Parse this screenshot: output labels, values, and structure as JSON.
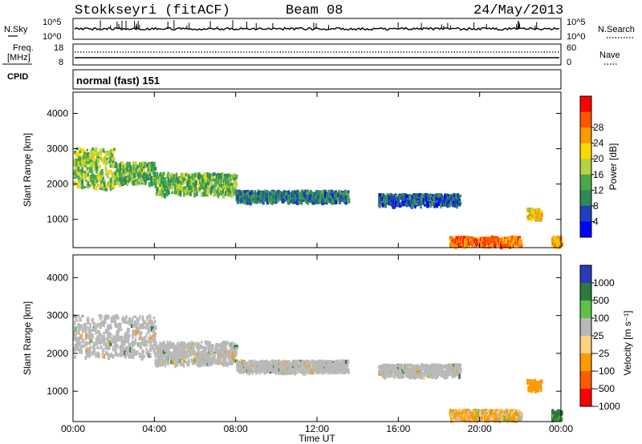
{
  "header": {
    "station": "Stokkseyri (fitACF)",
    "beam": "Beam 08",
    "date": "24/May/2013"
  },
  "noise_panel": {
    "left_label": "N.Sky",
    "right_label": "N.Search",
    "left_ticks": [
      "10^5",
      "10^0"
    ],
    "right_ticks": [
      "10^5",
      "10^0"
    ]
  },
  "freq_panel": {
    "left_label_top": "Freq.",
    "left_label_unit": "[MHz]",
    "left_ticks": [
      "18",
      "8"
    ],
    "right_label": "Nave",
    "right_ticks": [
      "60",
      "0"
    ]
  },
  "cpid_panel": {
    "label": "CPID",
    "value": "normal (fast) 151"
  },
  "colors": {
    "power_scale": [
      "#0000ff",
      "#1f3fbf",
      "#2e8b57",
      "#4aa84a",
      "#b6d23c",
      "#ffd700",
      "#ff9900",
      "#ff5500",
      "#ff0000"
    ],
    "velocity_scale": [
      "#2a3ab8",
      "#2d7a3c",
      "#5ec24a",
      "#b9b9b9",
      "#ffd27f",
      "#ff9a00",
      "#ff5a00",
      "#ff0000"
    ],
    "ground_scatter": "#b9b9b9"
  },
  "chart_data": [
    {
      "type": "heatmap",
      "parameter": "Power",
      "ylabel": "Slant Range [km]",
      "y_ticks": [
        "1000",
        "2000",
        "3000",
        "4000"
      ],
      "ylim": [
        200,
        4600
      ],
      "x_ticks": [
        "00:00",
        "04:00",
        "08:00",
        "12:00",
        "16:00",
        "20:00",
        "00:00"
      ],
      "xlim": [
        0,
        24
      ],
      "colorbar": {
        "label": "Power [dB]",
        "ticks": [
          "4",
          "8",
          "12",
          "16",
          "20",
          "24",
          "28"
        ],
        "range": [
          0,
          30
        ]
      },
      "echo_regions": [
        {
          "t": [
            0.0,
            2.0
          ],
          "range_km": [
            1900,
            3000
          ],
          "power_db": 14
        },
        {
          "t": [
            2.0,
            4.0
          ],
          "range_km": [
            2000,
            2600
          ],
          "power_db": 12
        },
        {
          "t": [
            4.0,
            8.0
          ],
          "range_km": [
            1700,
            2300
          ],
          "power_db": 12
        },
        {
          "t": [
            8.0,
            13.5
          ],
          "range_km": [
            1500,
            1800
          ],
          "power_db": 8
        },
        {
          "t": [
            15.0,
            19.0
          ],
          "range_km": [
            1400,
            1700
          ],
          "power_db": 6
        },
        {
          "t": [
            18.5,
            22.0
          ],
          "range_km": [
            250,
            500
          ],
          "power_db": 24
        },
        {
          "t": [
            22.3,
            23.0
          ],
          "range_km": [
            1000,
            1300
          ],
          "power_db": 18
        },
        {
          "t": [
            23.5,
            24.0
          ],
          "range_km": [
            250,
            500
          ],
          "power_db": 20
        }
      ]
    },
    {
      "type": "heatmap",
      "parameter": "Velocity",
      "ylabel": "Slant Range [km]",
      "y_ticks": [
        "1000",
        "2000",
        "3000",
        "4000"
      ],
      "ylim": [
        200,
        4600
      ],
      "x_ticks": [
        "00:00",
        "04:00",
        "08:00",
        "12:00",
        "16:00",
        "20:00",
        "00:00"
      ],
      "xlim": [
        0,
        24
      ],
      "xlabel": "Time UT",
      "colorbar": {
        "label": "Velocity [m s⁻¹]",
        "ticks": [
          "1000",
          "500",
          "100",
          "25",
          "−25",
          "−100",
          "−500",
          "−1000"
        ],
        "range": [
          -1000,
          1000
        ]
      },
      "echo_regions": [
        {
          "t": [
            0.0,
            4.0
          ],
          "range_km": [
            1900,
            3000
          ],
          "velocity": 0,
          "ground_scatter": true
        },
        {
          "t": [
            4.0,
            8.0
          ],
          "range_km": [
            1700,
            2300
          ],
          "velocity": 0,
          "ground_scatter": true
        },
        {
          "t": [
            8.0,
            13.5
          ],
          "range_km": [
            1500,
            1800
          ],
          "velocity": 0,
          "ground_scatter": true
        },
        {
          "t": [
            15.0,
            19.0
          ],
          "range_km": [
            1400,
            1700
          ],
          "velocity": 0,
          "ground_scatter": true
        },
        {
          "t": [
            18.5,
            22.0
          ],
          "range_km": [
            250,
            500
          ],
          "velocity": -100
        },
        {
          "t": [
            22.3,
            23.0
          ],
          "range_km": [
            1000,
            1300
          ],
          "velocity": -300
        },
        {
          "t": [
            23.5,
            24.0
          ],
          "range_km": [
            250,
            500
          ],
          "velocity": 200
        }
      ]
    }
  ]
}
